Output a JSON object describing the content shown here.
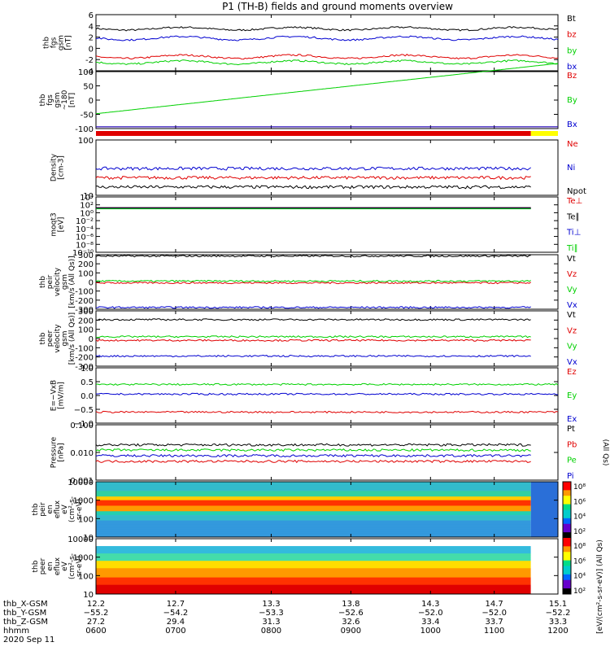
{
  "title": "P1 (TH-B) fields and ground moments overview",
  "date_label": "2020 Sep 11",
  "colors": {
    "black": "#000000",
    "red": "#e00000",
    "green": "#00d000",
    "blue": "#0000d0",
    "yellow": "#ffff00"
  },
  "chart_data": [
    {
      "type": "line",
      "id": "fgs_gsm",
      "ylabel": [
        "thb",
        "fgs",
        "gsm",
        "[nT]"
      ],
      "ylim": [
        -4,
        6
      ],
      "yticks": [
        6,
        4,
        2,
        0,
        -2,
        -4
      ],
      "legend": [
        "Bt",
        "bz",
        "by",
        "bx"
      ],
      "series": [
        {
          "name": "Bt",
          "color": "black",
          "mean": 3.5,
          "noise": 0.25
        },
        {
          "name": "bz",
          "color": "red",
          "mean": -1.5,
          "noise": 0.3
        },
        {
          "name": "by",
          "color": "green",
          "mean": -2.5,
          "noise": 0.3
        },
        {
          "name": "bx",
          "color": "blue",
          "mean": 1.8,
          "noise": 0.3
        }
      ]
    },
    {
      "type": "line",
      "id": "fgs_gsm_180",
      "ylabel": [
        "thb",
        "fgs",
        "gsm",
        "~180",
        "[nT]"
      ],
      "ylim": [
        -130,
        100
      ],
      "yticks": [
        100,
        50,
        0,
        -50,
        -100
      ],
      "legend": [
        "Bz",
        "By",
        "Bx"
      ],
      "series": [
        {
          "name": "Bz",
          "color": "red"
        },
        {
          "name": "By",
          "color": "green"
        },
        {
          "name": "Bx",
          "color": "blue"
        }
      ]
    },
    {
      "type": "flagbar",
      "id": "mode_bar",
      "segments": [
        {
          "color": "red",
          "from": 12.2,
          "to": 14.93
        },
        {
          "color": "yellow",
          "from": 14.93,
          "to": 15.1
        }
      ]
    },
    {
      "type": "line",
      "id": "density",
      "ylabel": [
        "Density",
        "[cm-3]"
      ],
      "scale": "log",
      "ylim": [
        3,
        300
      ],
      "yticks": [
        100,
        10
      ],
      "legend": [
        "Ne",
        "Ni",
        "Npot"
      ],
      "series": [
        {
          "name": "Ne",
          "color": "red",
          "mean": 13
        },
        {
          "name": "Ni",
          "color": "blue",
          "mean": 28
        },
        {
          "name": "Npot",
          "color": "black",
          "mean": 6
        }
      ]
    },
    {
      "type": "line",
      "id": "temperature",
      "ylabel": [
        "moqt3",
        "[eV]"
      ],
      "scale": "log",
      "ylim": [
        1e-10,
        10000.0
      ],
      "yticks": [
        "10⁴",
        "10²",
        "10⁰",
        "10⁻²",
        "10⁻⁴",
        "10⁻⁶",
        "10⁻⁸",
        "10⁻¹⁰"
      ],
      "legend": [
        "Te⊥",
        "Te∥",
        "Ti⊥",
        "Ti∥"
      ],
      "series": [
        {
          "name": "Te⊥",
          "color": "red"
        },
        {
          "name": "Te∥",
          "color": "black"
        },
        {
          "name": "Ti⊥",
          "color": "blue"
        },
        {
          "name": "Ti∥",
          "color": "green"
        }
      ]
    },
    {
      "type": "line",
      "id": "peir_velocity",
      "ylabel": [
        "thb",
        "peir",
        "velocity",
        "gsm",
        "[km/s (All Qs)]"
      ],
      "ylim": [
        -300,
        300
      ],
      "yticks": [
        300,
        200,
        100,
        0,
        -100,
        -200,
        -300
      ],
      "legend": [
        "Vt",
        "Vz",
        "Vy",
        "Vx"
      ],
      "series": [
        {
          "name": "Vt",
          "color": "black",
          "mean": 285
        },
        {
          "name": "Vz",
          "color": "red",
          "mean": -10
        },
        {
          "name": "Vy",
          "color": "green",
          "mean": 10
        },
        {
          "name": "Vx",
          "color": "blue",
          "mean": -280
        }
      ]
    },
    {
      "type": "line",
      "id": "peer_velocity",
      "ylabel": [
        "thb",
        "peer",
        "velocity",
        "gsm",
        "[km/s (All Qs)]"
      ],
      "ylim": [
        -300,
        300
      ],
      "yticks": [
        300,
        200,
        100,
        0,
        -100,
        -200,
        -300
      ],
      "legend": [
        "Vt",
        "Vz",
        "Vy",
        "Vx"
      ],
      "series": [
        {
          "name": "Vt",
          "color": "black",
          "mean": 205
        },
        {
          "name": "Vz",
          "color": "red",
          "mean": -20
        },
        {
          "name": "Vy",
          "color": "green",
          "mean": 20
        },
        {
          "name": "Vx",
          "color": "blue",
          "mean": -190
        }
      ]
    },
    {
      "type": "line",
      "id": "efield",
      "ylabel": [
        "E=−VxB",
        "[mV/m]"
      ],
      "ylim": [
        -1.0,
        1.0
      ],
      "yticks": [
        "1.0",
        "0.5",
        "0.0",
        "−0.5",
        "−1.0"
      ],
      "legend": [
        "Ez",
        "Ey",
        "Ex"
      ],
      "series": [
        {
          "name": "Ez",
          "color": "red",
          "mean": -0.6
        },
        {
          "name": "Ey",
          "color": "green",
          "mean": 0.4
        },
        {
          "name": "Ex",
          "color": "blue",
          "mean": 0.05
        }
      ]
    },
    {
      "type": "line",
      "id": "pressure",
      "ylabel": [
        "Pressure",
        "[nPa]"
      ],
      "scale": "log",
      "ylim": [
        0.0008,
        0.3
      ],
      "yticks": [
        "0.100",
        "0.010",
        "0.001"
      ],
      "legend": [
        "Pt",
        "Pb",
        "Pe",
        "Pi"
      ],
      "legend_note": "(All Qs)",
      "series": [
        {
          "name": "Pt",
          "color": "black",
          "mean": 0.035
        },
        {
          "name": "Pb",
          "color": "red",
          "mean": 0.006
        },
        {
          "name": "Pe",
          "color": "green",
          "mean": 0.02
        },
        {
          "name": "Pi",
          "color": "blue",
          "mean": 0.011
        }
      ]
    },
    {
      "type": "heatmap",
      "id": "peir_spec",
      "ylabel": [
        "thb",
        "peir",
        "en",
        "eflux",
        "eV",
        "(cm²-s-",
        "sr-eV)"
      ],
      "scale": "log",
      "ylim": [
        5,
        25000
      ],
      "yticks": [
        "10000",
        "1000",
        "100",
        "10"
      ]
    },
    {
      "type": "heatmap",
      "id": "peer_spec",
      "ylabel": [
        "thb",
        "peer",
        "en",
        "eflux",
        "eV",
        "(cm²-s-",
        "sr-eV)"
      ],
      "scale": "log",
      "ylim": [
        5,
        25000
      ],
      "yticks": [
        "10000",
        "1000",
        "100",
        "10"
      ]
    },
    {
      "type": "colorbar",
      "id": "colorbar",
      "ticks": [
        "10⁸",
        "10⁶",
        "10⁴",
        "10²",
        "10⁸",
        "10⁶",
        "10⁴",
        "10²"
      ],
      "label": "[eV/(cm²-s-sr-eV)] (All Qs)"
    }
  ],
  "x_axis": {
    "range": [
      12.2,
      15.1
    ],
    "rows": [
      {
        "label": "thb_X-GSM",
        "values": [
          "12.2",
          "12.7",
          "13.3",
          "13.8",
          "14.3",
          "14.7",
          "15.1"
        ]
      },
      {
        "label": "thb_Y-GSM",
        "values": [
          "−55.2",
          "−54.2",
          "−53.3",
          "−52.6",
          "−52.0",
          "−52.0",
          "−52.2"
        ]
      },
      {
        "label": "thb_Z-GSM",
        "values": [
          "27.2",
          "29.4",
          "31.3",
          "32.6",
          "33.4",
          "33.7",
          "33.3"
        ]
      },
      {
        "label": "hhmm",
        "values": [
          "0600",
          "0700",
          "0800",
          "0900",
          "1000",
          "1100",
          "1200"
        ]
      }
    ]
  }
}
